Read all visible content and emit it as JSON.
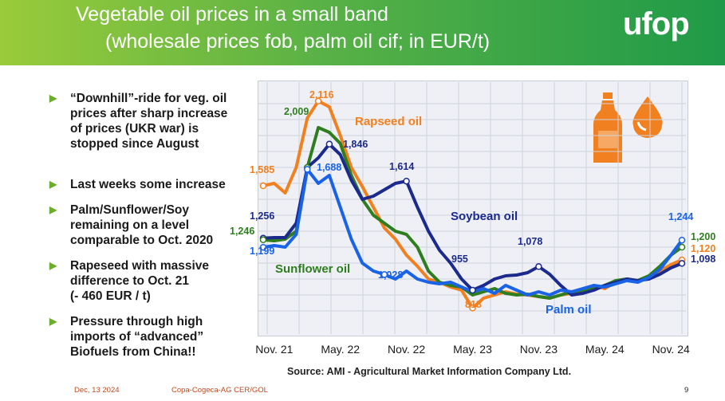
{
  "header": {
    "title_line1": "Vegetable oil prices in a small band",
    "title_line2": "(wholesale prices fob, palm oil cif; in EUR/t)",
    "logo": "ufop"
  },
  "bullets": [
    "“Downhill”-ride for veg. oil\nprices after sharp increase\nof prices (UKR war) is\nstopped since August",
    "Last weeks some increase",
    "Palm/Sunflower/Soy\nremaining on a level\ncomparable to Oct. 2020",
    "Rapeseed with massive\ndifference to Oct. 21\n(- 460 EUR / t)",
    "Pressure through high\nimports of “advanced”\nBiofuels from China!!"
  ],
  "source": "Source: AMI - Agricultural Market Information Company Ltd.",
  "footer": {
    "date": "Dec, 13 2024",
    "org": "Copa-Cogeca-AG CER/GOL",
    "page": "9"
  },
  "icons": [
    "bottle-icon",
    "drop-icon"
  ],
  "chart_data": {
    "type": "line",
    "title": "",
    "xlabel": "",
    "ylabel": "",
    "x": [
      "2021-10",
      "2021-11",
      "2021-12",
      "2022-01",
      "2022-02",
      "2022-03",
      "2022-04",
      "2022-05",
      "2022-06",
      "2022-07",
      "2022-08",
      "2022-09",
      "2022-10",
      "2022-11",
      "2022-12",
      "2023-01",
      "2023-02",
      "2023-03",
      "2023-04",
      "2023-05",
      "2023-06",
      "2023-07",
      "2023-08",
      "2023-09",
      "2023-10",
      "2023-11",
      "2023-12",
      "2024-01",
      "2024-02",
      "2024-03",
      "2024-04",
      "2024-05",
      "2024-06",
      "2024-07",
      "2024-08",
      "2024-09",
      "2024-10",
      "2024-11",
      "2024-12"
    ],
    "x_ticks": [
      "Nov. 21",
      "May. 22",
      "Nov. 22",
      "May. 23",
      "Nov. 23",
      "May. 24",
      "Nov. 24"
    ],
    "ylim": [
      700,
      2200
    ],
    "grid": true,
    "series": [
      {
        "name": "Rapseed oil",
        "color": "#f08020",
        "values": [
          1585,
          1600,
          1540,
          1700,
          2009,
          2116,
          2080,
          1900,
          1700,
          1580,
          1450,
          1320,
          1250,
          1150,
          1080,
          1000,
          980,
          950,
          930,
          818,
          880,
          900,
          920,
          905,
          900,
          890,
          880,
          900,
          910,
          930,
          960,
          940,
          980,
          1000,
          990,
          1020,
          1050,
          1090,
          1120
        ]
      },
      {
        "name": "Sunflower oil",
        "color": "#2e7d1f",
        "values": [
          1246,
          1240,
          1250,
          1300,
          1700,
          1950,
          1920,
          1850,
          1650,
          1500,
          1400,
          1350,
          1300,
          1280,
          1200,
          1050,
          980,
          960,
          950,
          900,
          920,
          940,
          910,
          900,
          905,
          890,
          880,
          900,
          920,
          930,
          940,
          960,
          990,
          1000,
          990,
          1020,
          1080,
          1150,
          1200
        ]
      },
      {
        "name": "Soybean oil",
        "color": "#1b2a8c",
        "values": [
          1256,
          1260,
          1260,
          1350,
          1700,
          1760,
          1846,
          1780,
          1620,
          1500,
          1520,
          1560,
          1600,
          1614,
          1450,
          1300,
          1180,
          1100,
          1000,
          930,
          960,
          1000,
          1020,
          1025,
          1040,
          1078,
          1030,
          960,
          900,
          910,
          930,
          960,
          980,
          1000,
          990,
          1000,
          1030,
          1070,
          1098
        ]
      },
      {
        "name": "Palm oil",
        "color": "#1a63e6",
        "values": [
          1199,
          1210,
          1200,
          1280,
          1688,
          1600,
          1650,
          1450,
          1250,
          1100,
          1050,
          1028,
          1000,
          1050,
          1000,
          980,
          970,
          980,
          950,
          920,
          940,
          910,
          960,
          930,
          900,
          920,
          900,
          930,
          920,
          940,
          960,
          950,
          970,
          990,
          980,
          1010,
          1060,
          1150,
          1244
        ]
      }
    ],
    "annotations": [
      "1,585",
      "2,116",
      "2,009",
      "1,846",
      "1,688",
      "1,614",
      "1,256",
      "1,246",
      "1,199",
      "1,028",
      "955",
      "818",
      "1,078",
      "1,244",
      "1,200",
      "1,120",
      "1,098"
    ]
  }
}
